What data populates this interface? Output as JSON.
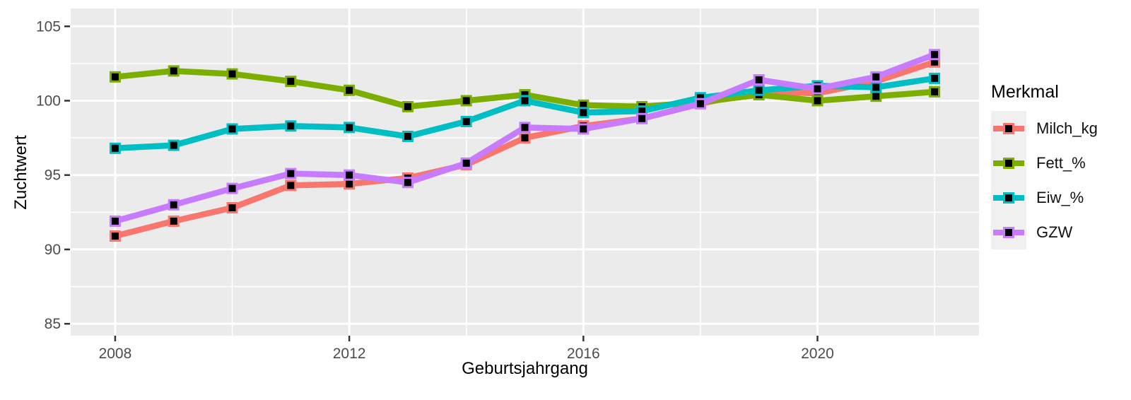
{
  "chart_data": {
    "type": "line",
    "title": "",
    "xlabel": "Geburtsjahrgang",
    "ylabel": "Zuchtwert",
    "legend_title": "Merkmal",
    "legend_position": "right",
    "x": [
      2008,
      2009,
      2010,
      2011,
      2012,
      2013,
      2014,
      2015,
      2016,
      2017,
      2018,
      2019,
      2020,
      2021,
      2022
    ],
    "series": [
      {
        "name": "Milch_kg",
        "color": "#F8766D",
        "values": [
          90.9,
          91.9,
          92.8,
          94.3,
          94.4,
          94.8,
          95.7,
          97.5,
          98.3,
          98.8,
          99.8,
          100.6,
          100.5,
          101.3,
          102.6
        ]
      },
      {
        "name": "Fett_%",
        "color": "#7CAE00",
        "values": [
          101.6,
          102.0,
          101.8,
          101.3,
          100.7,
          99.6,
          100.0,
          100.4,
          99.7,
          99.6,
          99.9,
          100.4,
          100.0,
          100.3,
          100.6
        ]
      },
      {
        "name": "Eiw_%",
        "color": "#00BFC4",
        "values": [
          96.8,
          97.0,
          98.1,
          98.3,
          98.2,
          97.6,
          98.6,
          100.0,
          99.2,
          99.3,
          100.2,
          100.7,
          101.0,
          100.9,
          101.5
        ]
      },
      {
        "name": "GZW",
        "color": "#C77CFF",
        "values": [
          91.9,
          93.0,
          94.1,
          95.1,
          95.0,
          94.5,
          95.8,
          98.2,
          98.1,
          98.8,
          99.8,
          101.4,
          100.8,
          101.6,
          103.1
        ]
      }
    ],
    "x_ticks": {
      "major": [
        2008,
        2012,
        2016,
        2020
      ],
      "minor": [
        2010,
        2014,
        2018,
        2022
      ],
      "labels": [
        "2008",
        "2012",
        "2016",
        "2020"
      ]
    },
    "y_ticks": {
      "major": [
        85,
        90,
        95,
        100,
        105
      ],
      "minor": [
        87.5,
        92.5,
        97.5,
        102.5
      ],
      "labels": [
        "85",
        "90",
        "95",
        "100",
        "105"
      ]
    },
    "xlim": [
      2007.24,
      2022.76
    ],
    "ylim": [
      84.2,
      106.2
    ],
    "grid": true,
    "panel_bg": "#EBEBEB",
    "grid_color": "#FFFFFF",
    "tick_color": "#333333",
    "tick_label_color": "#4D4D4D",
    "axis_title_color": "#000000"
  }
}
